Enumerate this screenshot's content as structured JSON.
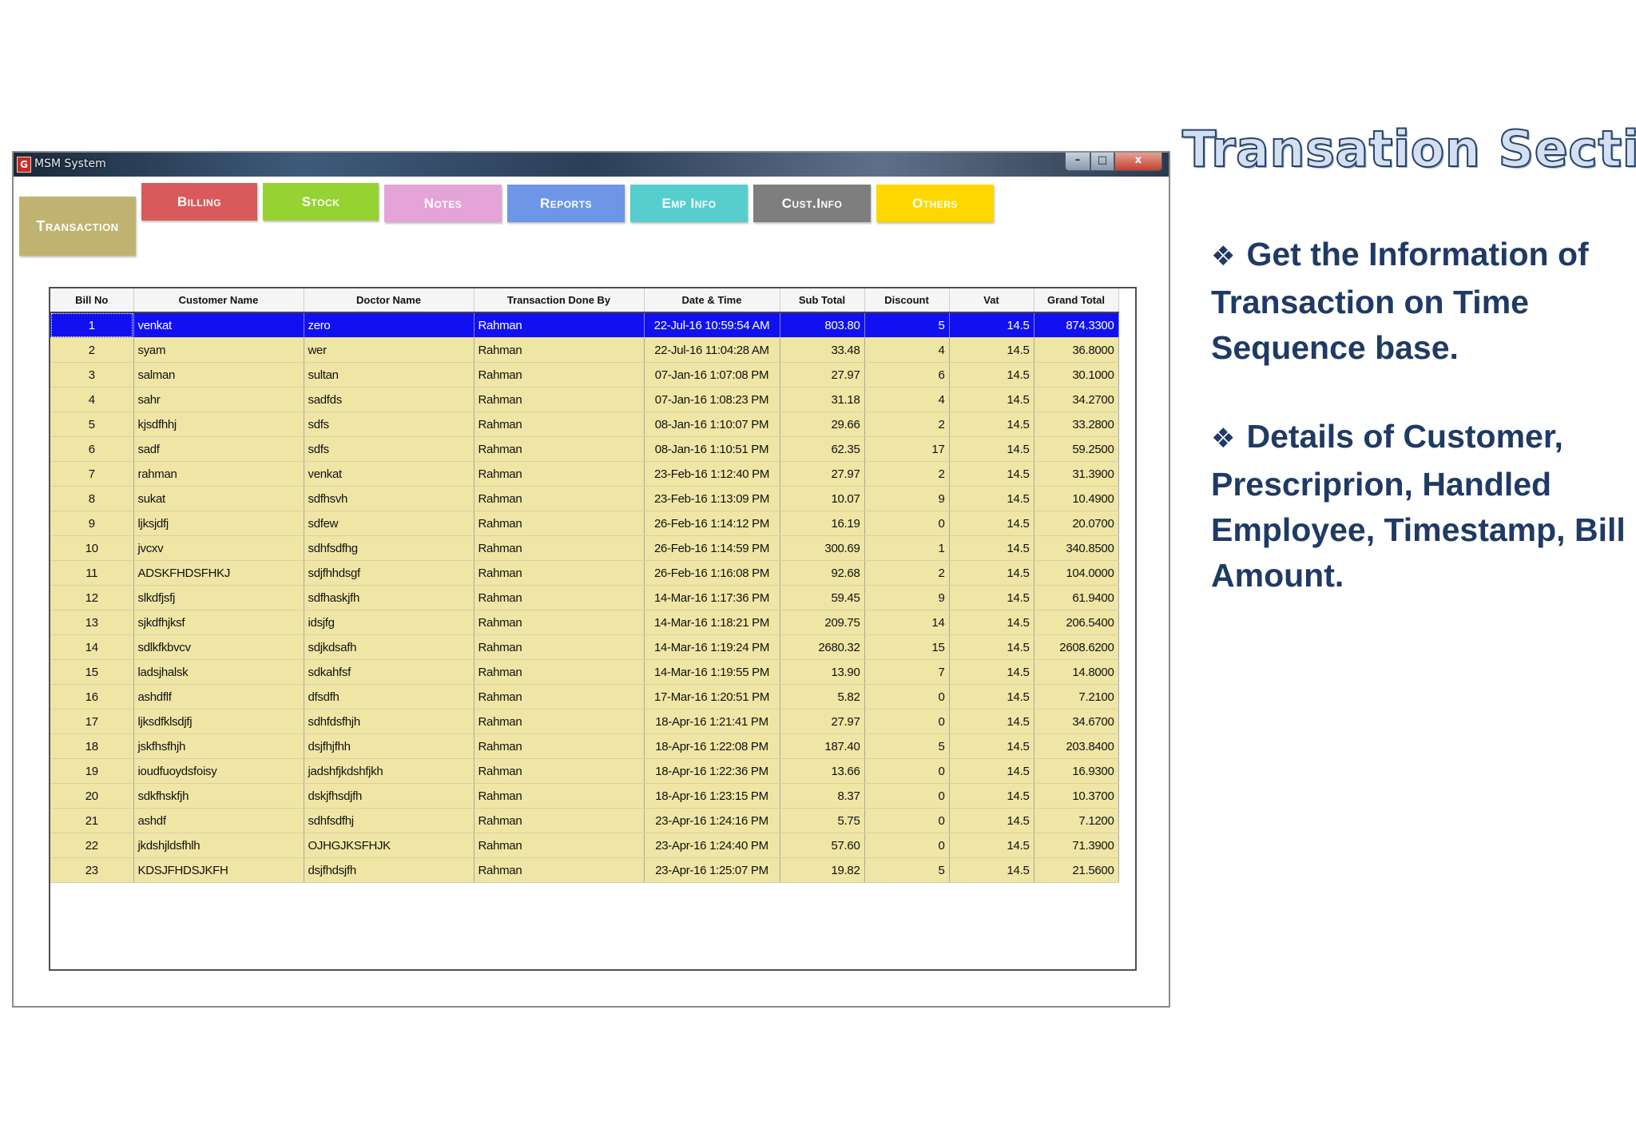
{
  "window": {
    "title": "MSM System",
    "icon_letter": "G",
    "controls": {
      "minimize": "–",
      "maximize": "□",
      "close": "x"
    }
  },
  "tabs": [
    {
      "id": "transaction",
      "label": "Transaction",
      "color": "#c0b372",
      "active": true
    },
    {
      "id": "billing",
      "label": "Billing",
      "color": "#d85a5a"
    },
    {
      "id": "stock",
      "label": "Stock",
      "color": "#96d232"
    },
    {
      "id": "notes",
      "label": "Notes",
      "color": "#e4a4d8"
    },
    {
      "id": "reports",
      "label": "Reports",
      "color": "#6e96e6"
    },
    {
      "id": "empinfo",
      "label": "Emp Info",
      "color": "#56cece"
    },
    {
      "id": "custinfo",
      "label": "Cust.Info",
      "color": "#7e7e7e"
    },
    {
      "id": "others",
      "label": "Others",
      "color": "#ffd700"
    }
  ],
  "table": {
    "columns": [
      "Bill No",
      "Customer Name",
      "Doctor Name",
      "Transaction Done By",
      "Date & Time",
      "Sub Total",
      "Discount",
      "Vat",
      "Grand Total"
    ],
    "selected_row": 0,
    "rows": [
      [
        "1",
        "venkat",
        "zero",
        "Rahman",
        "22-Jul-16 10:59:54 AM",
        "803.80",
        "5",
        "14.5",
        "874.3300"
      ],
      [
        "2",
        "syam",
        "wer",
        "Rahman",
        "22-Jul-16 11:04:28 AM",
        "33.48",
        "4",
        "14.5",
        "36.8000"
      ],
      [
        "3",
        "salman",
        "sultan",
        "Rahman",
        "07-Jan-16 1:07:08 PM",
        "27.97",
        "6",
        "14.5",
        "30.1000"
      ],
      [
        "4",
        "sahr",
        "sadfds",
        "Rahman",
        "07-Jan-16 1:08:23 PM",
        "31.18",
        "4",
        "14.5",
        "34.2700"
      ],
      [
        "5",
        "kjsdfhhj",
        "sdfs",
        "Rahman",
        "08-Jan-16 1:10:07 PM",
        "29.66",
        "2",
        "14.5",
        "33.2800"
      ],
      [
        "6",
        "sadf",
        "sdfs",
        "Rahman",
        "08-Jan-16 1:10:51 PM",
        "62.35",
        "17",
        "14.5",
        "59.2500"
      ],
      [
        "7",
        "rahman",
        "venkat",
        "Rahman",
        "23-Feb-16 1:12:40 PM",
        "27.97",
        "2",
        "14.5",
        "31.3900"
      ],
      [
        "8",
        "sukat",
        "sdfhsvh",
        "Rahman",
        "23-Feb-16 1:13:09 PM",
        "10.07",
        "9",
        "14.5",
        "10.4900"
      ],
      [
        "9",
        "ljksjdfj",
        "sdfew",
        "Rahman",
        "26-Feb-16 1:14:12 PM",
        "16.19",
        "0",
        "14.5",
        "20.0700"
      ],
      [
        "10",
        "jvcxv",
        "sdhfsdfhg",
        "Rahman",
        "26-Feb-16 1:14:59 PM",
        "300.69",
        "1",
        "14.5",
        "340.8500"
      ],
      [
        "11",
        "ADSKFHDSFHKJ",
        "sdjfhhdsgf",
        "Rahman",
        "26-Feb-16 1:16:08 PM",
        "92.68",
        "2",
        "14.5",
        "104.0000"
      ],
      [
        "12",
        "slkdfjsfj",
        "sdfhaskjfh",
        "Rahman",
        "14-Mar-16 1:17:36 PM",
        "59.45",
        "9",
        "14.5",
        "61.9400"
      ],
      [
        "13",
        "sjkdfhjksf",
        "idsjfg",
        "Rahman",
        "14-Mar-16 1:18:21 PM",
        "209.75",
        "14",
        "14.5",
        "206.5400"
      ],
      [
        "14",
        "sdlkfkbvcv",
        "sdjkdsafh",
        "Rahman",
        "14-Mar-16 1:19:24 PM",
        "2680.32",
        "15",
        "14.5",
        "2608.6200"
      ],
      [
        "15",
        "ladsjhalsk",
        "sdkahfsf",
        "Rahman",
        "14-Mar-16 1:19:55 PM",
        "13.90",
        "7",
        "14.5",
        "14.8000"
      ],
      [
        "16",
        "ashdflf",
        "dfsdfh",
        "Rahman",
        "17-Mar-16 1:20:51 PM",
        "5.82",
        "0",
        "14.5",
        "7.2100"
      ],
      [
        "17",
        "ljksdfklsdjfj",
        "sdhfdsfhjh",
        "Rahman",
        "18-Apr-16 1:21:41 PM",
        "27.97",
        "0",
        "14.5",
        "34.6700"
      ],
      [
        "18",
        "jskfhsfhjh",
        "dsjfhjfhh",
        "Rahman",
        "18-Apr-16 1:22:08 PM",
        "187.40",
        "5",
        "14.5",
        "203.8400"
      ],
      [
        "19",
        "ioudfuoydsfoisy",
        "jadshfjkdshfjkh",
        "Rahman",
        "18-Apr-16 1:22:36 PM",
        "13.66",
        "0",
        "14.5",
        "16.9300"
      ],
      [
        "20",
        "sdkfhskfjh",
        "dskjfhsdjfh",
        "Rahman",
        "18-Apr-16 1:23:15 PM",
        "8.37",
        "0",
        "14.5",
        "10.3700"
      ],
      [
        "21",
        "ashdf",
        "sdhfsdfhj",
        "Rahman",
        "23-Apr-16 1:24:16 PM",
        "5.75",
        "0",
        "14.5",
        "7.1200"
      ],
      [
        "22",
        "jkdshjldsfhlh",
        "OJHGJKSFHJK",
        "Rahman",
        "23-Apr-16 1:24:40 PM",
        "57.60",
        "0",
        "14.5",
        "71.3900"
      ],
      [
        "23",
        "KDSJFHDSJKFH",
        "dsjfhdsjfh",
        "Rahman",
        "23-Apr-16 1:25:07 PM",
        "19.82",
        "5",
        "14.5",
        "21.5600"
      ]
    ]
  },
  "panel": {
    "title": "Transation Section",
    "bullet_icon": "❖",
    "bullets": [
      "Get the Information of Transaction on Time Sequence base.",
      "Details of Customer, Prescriprion, Handled Employee, Timestamp, Bill Amount."
    ]
  }
}
